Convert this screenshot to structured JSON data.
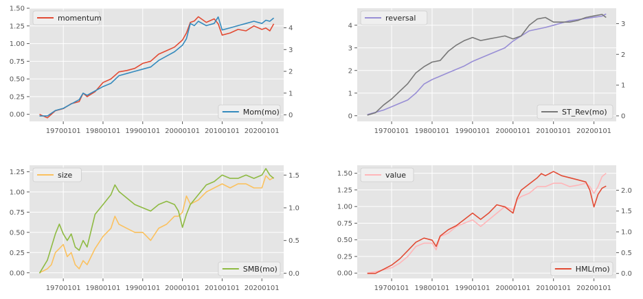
{
  "chart_data": [
    {
      "type": "line",
      "style": "ggplot",
      "x_tick_labels": [
        "19700101",
        "19800101",
        "19900101",
        "20000101",
        "20100101",
        "20200101"
      ],
      "x_tick_years": [
        1970,
        1980,
        1990,
        2000,
        2010,
        2020
      ],
      "x_range_years": [
        1961.5,
        2025.5
      ],
      "left_axis": {
        "ylim": [
          -0.1,
          1.5
        ],
        "ticks": [
          "0.00",
          "0.25",
          "0.50",
          "0.75",
          "1.00",
          "1.25",
          "1.50"
        ],
        "tick_values": [
          0,
          0.25,
          0.5,
          0.75,
          1.0,
          1.25,
          1.5
        ]
      },
      "right_axis": {
        "ylim": [
          -0.3,
          4.9
        ],
        "ticks": [
          "0",
          "1",
          "2",
          "3",
          "4"
        ],
        "tick_values": [
          0,
          1,
          2,
          3,
          4
        ]
      },
      "left_legend": {
        "label": "momentum",
        "placement": "upper left",
        "color": "#E24A33"
      },
      "right_legend": {
        "label": "Mom(mo)",
        "placement": "lower right",
        "color": "#348ABD"
      },
      "series_left": {
        "name": "momentum",
        "color": "#E24A33",
        "x": [
          1964,
          1966,
          1968,
          1970,
          1972,
          1974,
          1975,
          1976,
          1978,
          1980,
          1982,
          1984,
          1986,
          1988,
          1990,
          1992,
          1994,
          1996,
          1998,
          2000,
          2001,
          2002,
          2003,
          2004,
          2006,
          2008,
          2009,
          2010,
          2012,
          2014,
          2016,
          2018,
          2020,
          2021,
          2022,
          2023
        ],
        "y": [
          0.0,
          -0.05,
          0.05,
          0.08,
          0.15,
          0.18,
          0.3,
          0.25,
          0.32,
          0.45,
          0.5,
          0.6,
          0.62,
          0.65,
          0.72,
          0.75,
          0.85,
          0.9,
          0.95,
          1.05,
          1.15,
          1.3,
          1.32,
          1.38,
          1.3,
          1.35,
          1.28,
          1.12,
          1.15,
          1.2,
          1.18,
          1.25,
          1.2,
          1.22,
          1.18,
          1.28
        ]
      },
      "series_right": {
        "name": "Mom(mo)",
        "color": "#348ABD",
        "x": [
          1964,
          1966,
          1968,
          1970,
          1972,
          1974,
          1975,
          1976,
          1978,
          1980,
          1982,
          1984,
          1986,
          1988,
          1990,
          1992,
          1994,
          1996,
          1998,
          2000,
          2001,
          2002,
          2003,
          2004,
          2006,
          2008,
          2009,
          2010,
          2012,
          2014,
          2016,
          2018,
          2020,
          2021,
          2022,
          2023
        ],
        "y": [
          -0.05,
          -0.05,
          0.2,
          0.3,
          0.5,
          0.7,
          1.0,
          0.9,
          1.1,
          1.3,
          1.45,
          1.8,
          1.9,
          2.0,
          2.1,
          2.2,
          2.5,
          2.7,
          2.9,
          3.2,
          3.5,
          4.2,
          4.1,
          4.3,
          4.1,
          4.2,
          4.5,
          3.9,
          4.0,
          4.1,
          4.2,
          4.3,
          4.2,
          4.35,
          4.3,
          4.45
        ]
      }
    },
    {
      "type": "line",
      "style": "ggplot",
      "x_tick_labels": [
        "19700101",
        "19800101",
        "19900101",
        "20000101",
        "20100101",
        "20200101"
      ],
      "x_tick_years": [
        1970,
        1980,
        1990,
        2000,
        2010,
        2020
      ],
      "x_range_years": [
        1961.5,
        2025.5
      ],
      "left_axis": {
        "ylim": [
          -0.25,
          4.75
        ],
        "ticks": [
          "0",
          "1",
          "2",
          "3",
          "4"
        ],
        "tick_values": [
          0,
          1,
          2,
          3,
          4
        ]
      },
      "right_axis": {
        "ylim": [
          -0.18,
          3.5
        ],
        "ticks": [
          "0",
          "1",
          "2",
          "3"
        ],
        "tick_values": [
          0,
          1,
          2,
          3
        ]
      },
      "left_legend": {
        "label": "reversal",
        "placement": "upper left",
        "color": "#988ED5"
      },
      "right_legend": {
        "label": "ST_Rev(mo)",
        "placement": "lower right",
        "color": "#777777"
      },
      "series_left": {
        "name": "reversal",
        "color": "#988ED5",
        "x": [
          1964,
          1966,
          1968,
          1970,
          1972,
          1974,
          1976,
          1978,
          1980,
          1984,
          1988,
          1990,
          1994,
          1998,
          2000,
          2004,
          2008,
          2010,
          2014,
          2018,
          2020,
          2022,
          2023
        ],
        "y": [
          0.05,
          0.15,
          0.25,
          0.4,
          0.55,
          0.7,
          1.0,
          1.4,
          1.6,
          1.9,
          2.2,
          2.4,
          2.7,
          3.0,
          3.3,
          3.75,
          3.9,
          4.0,
          4.2,
          4.3,
          4.35,
          4.4,
          4.5
        ]
      },
      "series_right": {
        "name": "ST_Rev(mo)",
        "color": "#777777",
        "x": [
          1964,
          1966,
          1968,
          1970,
          1972,
          1974,
          1976,
          1978,
          1980,
          1982,
          1984,
          1986,
          1988,
          1990,
          1992,
          1994,
          1996,
          1998,
          2000,
          2002,
          2004,
          2006,
          2008,
          2010,
          2012,
          2014,
          2016,
          2018,
          2020,
          2022,
          2023
        ],
        "y": [
          0.02,
          0.1,
          0.35,
          0.55,
          0.8,
          1.05,
          1.4,
          1.6,
          1.75,
          1.8,
          2.1,
          2.3,
          2.45,
          2.55,
          2.45,
          2.5,
          2.55,
          2.6,
          2.5,
          2.6,
          2.95,
          3.15,
          3.2,
          3.05,
          3.05,
          3.05,
          3.1,
          3.2,
          3.25,
          3.3,
          3.2
        ]
      }
    },
    {
      "type": "line",
      "style": "ggplot",
      "x_tick_labels": [
        "19700101",
        "19800101",
        "19900101",
        "20000101",
        "20100101",
        "20200101"
      ],
      "x_tick_years": [
        1970,
        1980,
        1990,
        2000,
        2010,
        2020
      ],
      "x_range_years": [
        1961.5,
        2025.5
      ],
      "left_axis": {
        "ylim": [
          -0.07,
          1.33
        ],
        "ticks": [
          "0.00",
          "0.25",
          "0.50",
          "0.75",
          "1.00",
          "1.25"
        ],
        "tick_values": [
          0,
          0.25,
          0.5,
          0.75,
          1.0,
          1.25
        ]
      },
      "right_axis": {
        "ylim": [
          -0.08,
          1.65
        ],
        "ticks": [
          "0.0",
          "0.5",
          "1.0",
          "1.5"
        ],
        "tick_values": [
          0,
          0.5,
          1.0,
          1.5
        ]
      },
      "left_legend": {
        "label": "size",
        "placement": "upper left",
        "color": "#FBC15E"
      },
      "right_legend": {
        "label": "SMB(mo)",
        "placement": "lower right",
        "color": "#8EBA42"
      },
      "series_left": {
        "name": "size",
        "color": "#FBC15E",
        "x": [
          1964,
          1966,
          1967,
          1968,
          1969,
          1970,
          1971,
          1972,
          1973,
          1974,
          1975,
          1976,
          1978,
          1980,
          1982,
          1983,
          1984,
          1986,
          1988,
          1990,
          1992,
          1994,
          1996,
          1998,
          1999,
          2000,
          2001,
          2002,
          2004,
          2006,
          2008,
          2010,
          2012,
          2014,
          2016,
          2018,
          2020,
          2021,
          2022,
          2023
        ],
        "y": [
          0.0,
          0.05,
          0.1,
          0.25,
          0.3,
          0.35,
          0.2,
          0.25,
          0.1,
          0.05,
          0.15,
          0.1,
          0.3,
          0.45,
          0.55,
          0.7,
          0.6,
          0.55,
          0.5,
          0.5,
          0.4,
          0.55,
          0.6,
          0.7,
          0.7,
          0.75,
          0.95,
          0.85,
          0.9,
          1.0,
          1.05,
          1.1,
          1.05,
          1.1,
          1.1,
          1.05,
          1.05,
          1.2,
          1.15,
          1.18
        ]
      },
      "series_right": {
        "name": "SMB(mo)",
        "color": "#8EBA42",
        "x": [
          1964,
          1966,
          1968,
          1969,
          1970,
          1971,
          1972,
          1973,
          1974,
          1975,
          1976,
          1978,
          1980,
          1982,
          1983,
          1984,
          1986,
          1988,
          1990,
          1992,
          1994,
          1996,
          1998,
          1999,
          2000,
          2001,
          2002,
          2004,
          2006,
          2008,
          2010,
          2012,
          2014,
          2016,
          2018,
          2020,
          2021,
          2022,
          2023
        ],
        "y": [
          0.0,
          0.2,
          0.6,
          0.75,
          0.6,
          0.5,
          0.6,
          0.4,
          0.35,
          0.5,
          0.4,
          0.9,
          1.05,
          1.2,
          1.35,
          1.25,
          1.15,
          1.05,
          1.0,
          0.95,
          1.05,
          1.1,
          1.05,
          0.95,
          0.7,
          0.9,
          1.05,
          1.2,
          1.35,
          1.4,
          1.5,
          1.45,
          1.45,
          1.5,
          1.45,
          1.5,
          1.6,
          1.5,
          1.45
        ]
      }
    },
    {
      "type": "line",
      "style": "ggplot",
      "x_tick_labels": [
        "19700101",
        "19800101",
        "19900101",
        "20000101",
        "20100101",
        "20200101"
      ],
      "x_tick_years": [
        1970,
        1980,
        1990,
        2000,
        2010,
        2020
      ],
      "x_range_years": [
        1961.5,
        2025.5
      ],
      "left_axis": {
        "ylim": [
          -0.08,
          1.62
        ],
        "ticks": [
          "0.00",
          "0.25",
          "0.50",
          "0.75",
          "1.00",
          "1.25",
          "1.50"
        ],
        "tick_values": [
          0,
          0.25,
          0.5,
          0.75,
          1.0,
          1.25,
          1.5
        ]
      },
      "right_axis": {
        "ylim": [
          -0.12,
          2.6
        ],
        "ticks": [
          "0.0",
          "0.5",
          "1.0",
          "1.5",
          "2.0"
        ],
        "tick_values": [
          0,
          0.5,
          1.0,
          1.5,
          2.0
        ]
      },
      "left_legend": {
        "label": "value",
        "placement": "upper left",
        "color": "#FFB5B8"
      },
      "right_legend": {
        "label": "HML(mo)",
        "placement": "lower right",
        "color": "#E24A33"
      },
      "series_left": {
        "name": "value",
        "color": "#FFB5B8",
        "x": [
          1964,
          1966,
          1968,
          1970,
          1972,
          1974,
          1976,
          1978,
          1980,
          1981,
          1982,
          1984,
          1986,
          1988,
          1990,
          1992,
          1994,
          1996,
          1998,
          2000,
          2001,
          2002,
          2004,
          2006,
          2008,
          2010,
          2012,
          2014,
          2016,
          2018,
          2019,
          2020,
          2021,
          2022,
          2023
        ],
        "y": [
          0.0,
          0.02,
          0.05,
          0.08,
          0.15,
          0.25,
          0.4,
          0.45,
          0.45,
          0.35,
          0.55,
          0.6,
          0.7,
          0.75,
          0.8,
          0.7,
          0.8,
          0.9,
          1.0,
          0.95,
          1.1,
          1.15,
          1.2,
          1.3,
          1.3,
          1.35,
          1.35,
          1.3,
          1.32,
          1.35,
          1.3,
          1.2,
          1.3,
          1.45,
          1.5
        ]
      },
      "series_right": {
        "name": "HML(mo)",
        "color": "#E24A33",
        "x": [
          1964,
          1966,
          1968,
          1970,
          1972,
          1974,
          1976,
          1978,
          1980,
          1981,
          1982,
          1984,
          1986,
          1988,
          1990,
          1992,
          1994,
          1996,
          1998,
          2000,
          2001,
          2002,
          2004,
          2006,
          2007,
          2008,
          2010,
          2012,
          2014,
          2016,
          2018,
          2019,
          2020,
          2021,
          2022,
          2023
        ],
        "y": [
          0.0,
          0.0,
          0.1,
          0.2,
          0.35,
          0.55,
          0.75,
          0.85,
          0.8,
          0.65,
          0.9,
          1.05,
          1.15,
          1.3,
          1.45,
          1.3,
          1.45,
          1.65,
          1.6,
          1.45,
          1.8,
          2.0,
          2.15,
          2.3,
          2.4,
          2.35,
          2.45,
          2.35,
          2.3,
          2.25,
          2.2,
          2.0,
          1.6,
          1.9,
          2.05,
          2.1
        ]
      }
    }
  ]
}
